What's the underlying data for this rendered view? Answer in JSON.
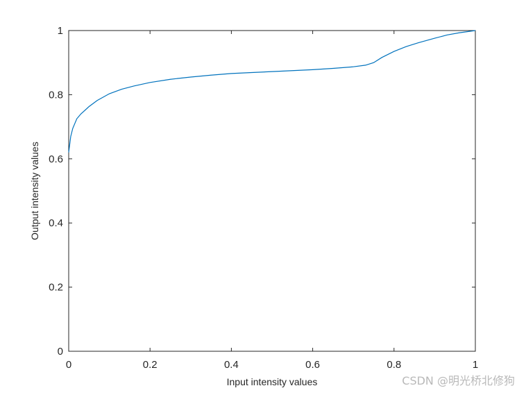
{
  "chart_data": {
    "type": "line",
    "xlabel": "Input intensity values",
    "ylabel": "Output intensity values",
    "xlim": [
      0,
      1
    ],
    "ylim": [
      0,
      1
    ],
    "xticks": [
      "0",
      "0.2",
      "0.4",
      "0.6",
      "0.8",
      "1"
    ],
    "yticks": [
      "0",
      "0.2",
      "0.4",
      "0.6",
      "0.8",
      "1"
    ],
    "grid": false,
    "line_color": "#0072BD",
    "series": [
      {
        "x": [
          0,
          0.005,
          0.01,
          0.02,
          0.03,
          0.05,
          0.07,
          0.1,
          0.13,
          0.16,
          0.2,
          0.25,
          0.3,
          0.35,
          0.4,
          0.45,
          0.5,
          0.55,
          0.6,
          0.65,
          0.7,
          0.73,
          0.75,
          0.77,
          0.8,
          0.83,
          0.86,
          0.9,
          0.93,
          0.96,
          1.0
        ],
        "y": [
          0.62,
          0.67,
          0.695,
          0.725,
          0.74,
          0.763,
          0.782,
          0.803,
          0.817,
          0.827,
          0.838,
          0.848,
          0.855,
          0.861,
          0.866,
          0.869,
          0.872,
          0.875,
          0.878,
          0.882,
          0.887,
          0.892,
          0.9,
          0.916,
          0.935,
          0.95,
          0.962,
          0.976,
          0.986,
          0.993,
          1.0
        ]
      }
    ]
  },
  "watermark": "CSDN @明光桥北修狗"
}
